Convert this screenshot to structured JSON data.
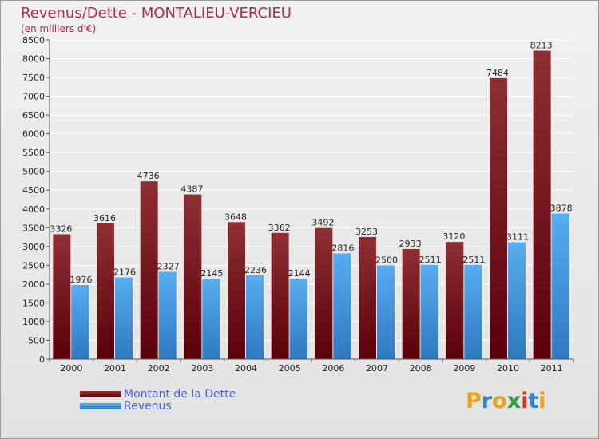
{
  "chart_data": {
    "type": "bar",
    "title": "Revenus/Dette - MONTALIEU-VERCIEU",
    "subtitle": "(en milliers d'€)",
    "categories": [
      "2000",
      "2001",
      "2002",
      "2003",
      "2004",
      "2005",
      "2006",
      "2007",
      "2008",
      "2009",
      "2010",
      "2011"
    ],
    "series": [
      {
        "name": "Montant de la Dette",
        "values": [
          3326,
          3616,
          4736,
          4387,
          3648,
          3362,
          3492,
          3253,
          2933,
          3120,
          7484,
          8213
        ]
      },
      {
        "name": "Revenus",
        "values": [
          1976,
          2176,
          2327,
          2145,
          2236,
          2144,
          2816,
          2500,
          2511,
          2511,
          3111,
          3878
        ]
      }
    ],
    "ylim": [
      0,
      8500
    ],
    "yticks": [
      0,
      500,
      1000,
      1500,
      2000,
      2500,
      3000,
      3500,
      4000,
      4500,
      5000,
      5500,
      6000,
      6500,
      7000,
      7500,
      8000,
      8500
    ],
    "grid": true,
    "legend": "bottom-left",
    "colors": {
      "dette": "#8e2a2e",
      "revenus": "#4aa3e6"
    }
  },
  "brand": {
    "text": "Proxiti",
    "letters": [
      "P",
      "r",
      "o",
      "x",
      "i",
      "t",
      "i"
    ],
    "colors": [
      "#e8a21b",
      "#2f86c8",
      "#e8a21b",
      "#3b9a45",
      "#d63a2a",
      "#2f86c8",
      "#e8a21b"
    ]
  }
}
